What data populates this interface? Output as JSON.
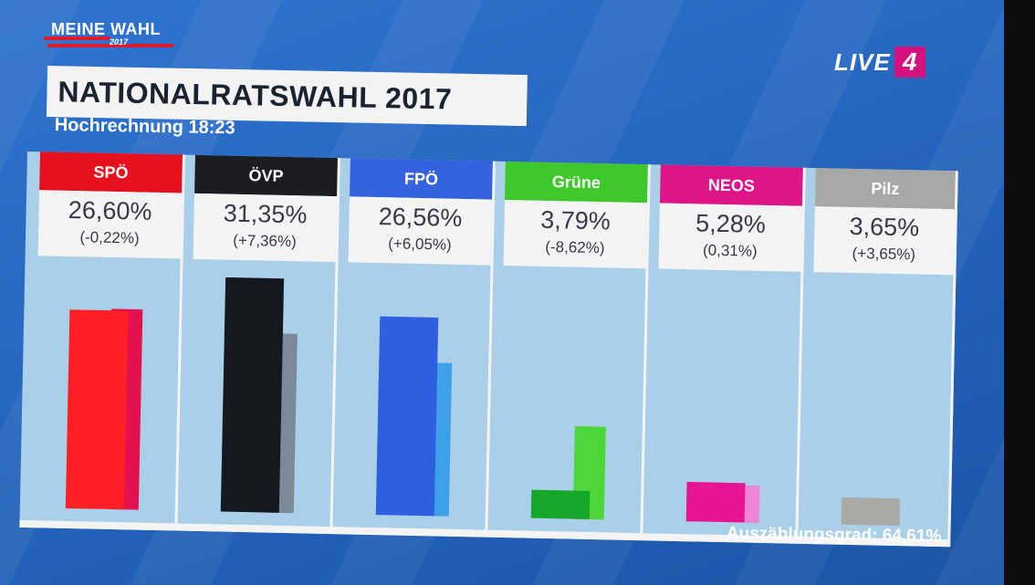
{
  "brand": {
    "name": "MEINE WAHL",
    "year": "2017",
    "channel": "LIVE",
    "channel_number": "4"
  },
  "header": {
    "title": "NATIONALRATSWAHL 2017",
    "subtitle": "Hochrechnung 18:23"
  },
  "footer": {
    "count_label": "Auszählungsgrad:",
    "count_value": "64,61%"
  },
  "colors": {
    "background": "#2566c0",
    "panel": "#a9d0e8",
    "live_badge": "#d6107e"
  },
  "chart_data": {
    "type": "bar",
    "title": "NATIONALRATSWAHL 2017",
    "subtitle": "Hochrechnung 18:23",
    "categories": [
      "SPÖ",
      "ÖVP",
      "FPÖ",
      "Grüne",
      "NEOS",
      "Pilz"
    ],
    "series": [
      {
        "values": [
          26.6,
          31.35,
          26.56,
          3.79,
          5.28,
          3.65
        ]
      },
      {
        "values": [
          26.82,
          23.99,
          20.51,
          12.41,
          4.97,
          0.0
        ]
      }
    ],
    "value_labels": [
      "26,60%",
      "31,35%",
      "26,56%",
      "3,79%",
      "5,28%",
      "3,65%"
    ],
    "change_labels": [
      "(-0,22%)",
      "(+7,36%)",
      "(+6,05%)",
      "(-8,62%)",
      "(0,31%)",
      "(+3,65%)"
    ],
    "colors": {
      "current": [
        "#ff1f25",
        "#14181f",
        "#2f5fe0",
        "#17a82b",
        "#e61492",
        "#a9aaa6"
      ],
      "previous": [
        "#e3124e",
        "#7a8a96",
        "#3ea0ea",
        "#4cd638",
        "#ee84d6",
        "#a9aaa6"
      ],
      "header": [
        "#e8101e",
        "#1b1d22",
        "#3563e0",
        "#3ec82b",
        "#df1489",
        "#a6a8a6"
      ]
    },
    "ylim": [
      0,
      32
    ]
  }
}
